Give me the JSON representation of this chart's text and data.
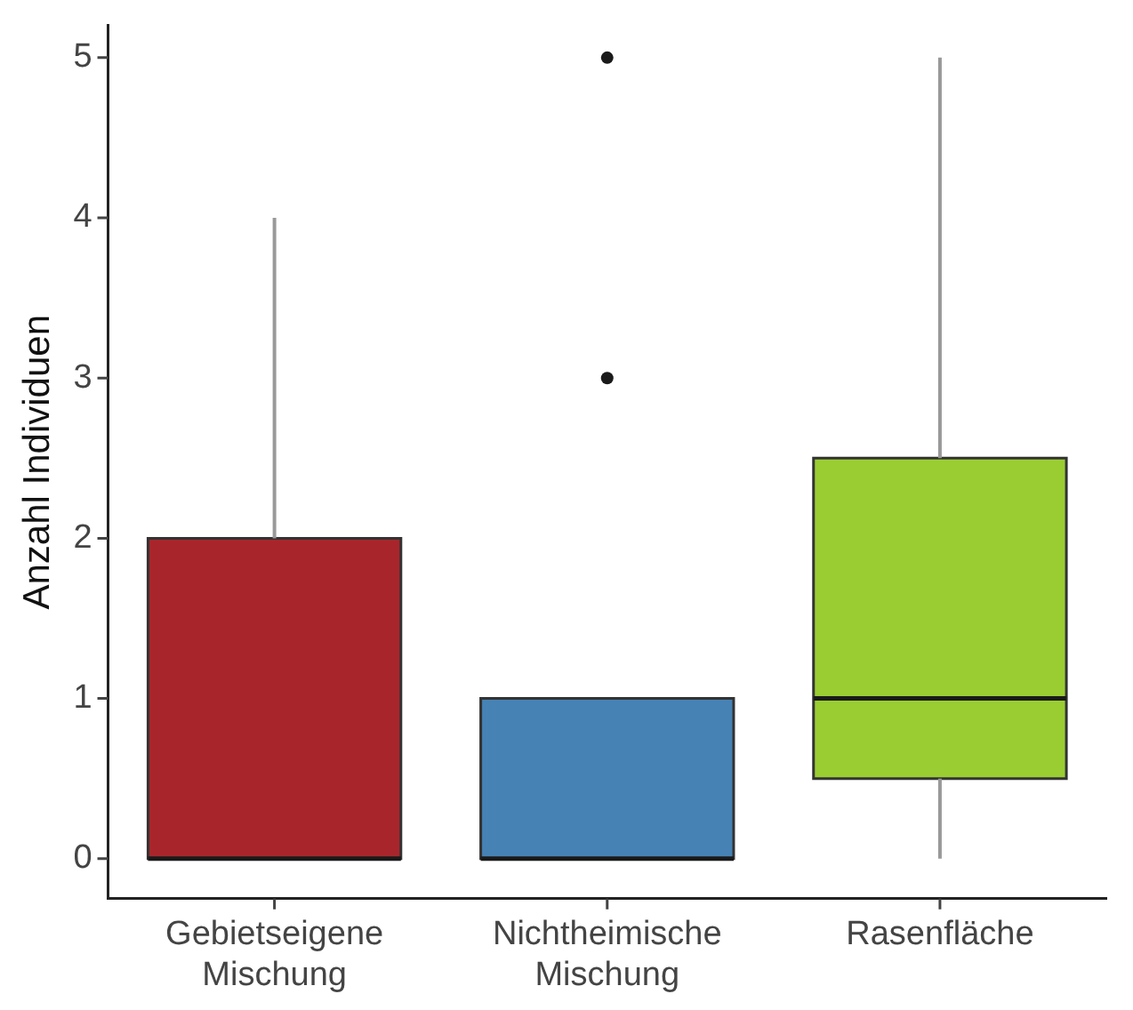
{
  "chart_data": {
    "type": "box",
    "ylabel": "Anzahl Individuen",
    "categories": [
      "Gebietseigene Mischung",
      "Nichtheimische Mischung",
      "Rasenfläche"
    ],
    "colors": [
      "#a8262b",
      "#4682b4",
      "#9acd32"
    ],
    "boxes": [
      {
        "low": 0,
        "q1": 0,
        "median": 0,
        "q3": 2,
        "high": 4
      },
      {
        "low": 0,
        "q1": 0,
        "median": 0,
        "q3": 1,
        "high": 1,
        "outliers": [
          3,
          5
        ]
      },
      {
        "low": 0,
        "q1": 0.5,
        "median": 1,
        "q3": 2.5,
        "high": 5
      }
    ],
    "ylim": [
      -0.25,
      5.2
    ],
    "yticks": [
      0,
      1,
      2,
      3,
      4,
      5
    ],
    "grid": false
  }
}
